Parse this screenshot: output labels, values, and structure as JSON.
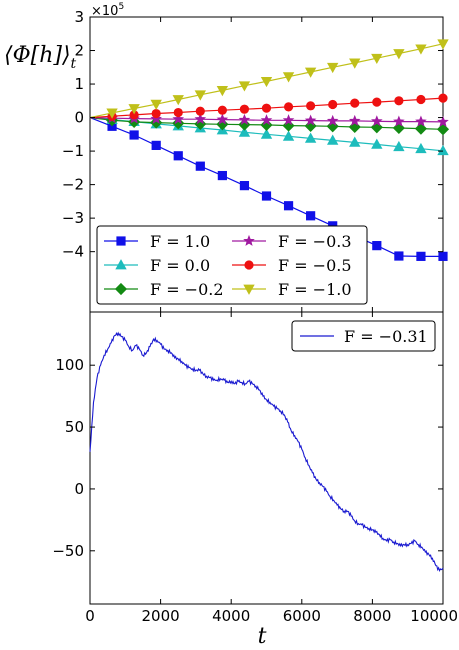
{
  "figure": {
    "x_axis_label": "t",
    "top_y_axis_label": "⟨Φ[h]⟩",
    "top_y_axis_label_subscript": "t",
    "top_y_multiplier_base": "×10",
    "top_y_multiplier_exp": "5"
  },
  "colors": {
    "F=1.0": "#1010e8",
    "F=0.0": "#1dbcbc",
    "F=-0.2": "#138a13",
    "F=-0.3": "#a01aa0",
    "F=-0.5": "#ee1111",
    "F=-1.0": "#c0c01a",
    "walk": "#1a1ad0"
  },
  "chart_data": [
    {
      "type": "line",
      "panel": "top",
      "x": [
        0,
        625,
        1250,
        1875,
        2500,
        3125,
        3750,
        4375,
        5000,
        5625,
        6250,
        6875,
        7500,
        8125,
        8750,
        9375,
        10000
      ],
      "xlim": [
        0,
        10000
      ],
      "ylim": [
        -5.8,
        3
      ],
      "y_unit_multiplier": "×10^5",
      "x_tick_labels": [
        "0",
        "2000",
        "4000",
        "6000",
        "8000",
        "10000"
      ],
      "x_tick_values": [
        0,
        2000,
        4000,
        6000,
        8000,
        10000
      ],
      "y_tick_labels": [
        "−4",
        "−3",
        "−2",
        "−1",
        "0",
        "1",
        "2",
        "3"
      ],
      "y_tick_values": [
        -4,
        -3,
        -2,
        -1,
        0,
        1,
        2,
        3
      ],
      "legend_position": "lower-left",
      "series": [
        {
          "name": "F = 1.0",
          "marker": "square",
          "color_key": "F=1.0",
          "values": [
            0,
            -0.26,
            -0.52,
            -0.83,
            -1.14,
            -1.45,
            -1.73,
            -2.03,
            -2.34,
            -2.63,
            -2.93,
            -3.23,
            -3.53,
            -3.82,
            -4.13,
            -4.14,
            -4.14
          ]
        },
        {
          "name": "F = 0.0",
          "marker": "triangle-up",
          "color_key": "F=0.0",
          "values": [
            0,
            -0.06,
            -0.12,
            -0.19,
            -0.25,
            -0.31,
            -0.37,
            -0.44,
            -0.5,
            -0.56,
            -0.62,
            -0.68,
            -0.74,
            -0.8,
            -0.87,
            -0.93,
            -0.99
          ]
        },
        {
          "name": "F = −0.2",
          "marker": "diamond",
          "color_key": "F=-0.2",
          "values": [
            0,
            -0.08,
            -0.13,
            -0.15,
            -0.17,
            -0.19,
            -0.2,
            -0.21,
            -0.22,
            -0.24,
            -0.25,
            -0.26,
            -0.28,
            -0.29,
            -0.31,
            -0.33,
            -0.35
          ]
        },
        {
          "name": "F = −0.3",
          "marker": "star",
          "color_key": "F=-0.3",
          "values": [
            0,
            -0.02,
            -0.03,
            -0.04,
            -0.05,
            -0.05,
            -0.06,
            -0.07,
            -0.08,
            -0.08,
            -0.09,
            -0.1,
            -0.1,
            -0.11,
            -0.12,
            -0.12,
            -0.13
          ]
        },
        {
          "name": "F = −0.5",
          "marker": "circle",
          "color_key": "F=-0.5",
          "values": [
            0,
            0.04,
            0.08,
            0.12,
            0.15,
            0.19,
            0.22,
            0.25,
            0.28,
            0.32,
            0.35,
            0.39,
            0.43,
            0.46,
            0.5,
            0.54,
            0.58
          ]
        },
        {
          "name": "F = −1.0",
          "marker": "triangle-down",
          "color_key": "F=-1.0",
          "values": [
            0,
            0.14,
            0.27,
            0.4,
            0.54,
            0.68,
            0.81,
            0.95,
            1.08,
            1.22,
            1.36,
            1.5,
            1.63,
            1.77,
            1.91,
            2.05,
            2.2
          ]
        }
      ]
    },
    {
      "type": "line",
      "panel": "bottom",
      "xlim": [
        0,
        10000
      ],
      "ylim": [
        -93,
        143
      ],
      "x_tick_labels": [
        "0",
        "2000",
        "4000",
        "6000",
        "8000",
        "10000"
      ],
      "x_tick_values": [
        0,
        2000,
        4000,
        6000,
        8000,
        10000
      ],
      "y_tick_labels": [
        "−50",
        "0",
        "50",
        "100"
      ],
      "y_tick_values": [
        -50,
        0,
        50,
        100
      ],
      "legend_position": "top-right",
      "series": [
        {
          "name": "F = −0.31",
          "color_key": "walk",
          "x": [
            0,
            100,
            200,
            300,
            400,
            500,
            600,
            700,
            800,
            900,
            1000,
            1100,
            1200,
            1300,
            1400,
            1500,
            1600,
            1700,
            1800,
            1900,
            2000,
            2100,
            2200,
            2300,
            2400,
            2500,
            2600,
            2700,
            2800,
            2900,
            3000,
            3100,
            3200,
            3300,
            3400,
            3500,
            3600,
            3700,
            3800,
            3900,
            4000,
            4100,
            4200,
            4300,
            4400,
            4500,
            4600,
            4700,
            4800,
            4900,
            5000,
            5100,
            5200,
            5300,
            5400,
            5500,
            5600,
            5700,
            5800,
            5900,
            6000,
            6100,
            6200,
            6300,
            6400,
            6500,
            6600,
            6700,
            6800,
            6900,
            7000,
            7100,
            7200,
            7300,
            7400,
            7500,
            7600,
            7700,
            7800,
            7900,
            8000,
            8100,
            8200,
            8300,
            8400,
            8500,
            8600,
            8700,
            8800,
            8900,
            9000,
            9100,
            9200,
            9300,
            9400,
            9500,
            9600,
            9700,
            9800,
            9900,
            10000
          ],
          "values": [
            30,
            70,
            90,
            100,
            108,
            113,
            118,
            124,
            126,
            123,
            120,
            115,
            112,
            116,
            113,
            108,
            110,
            115,
            121,
            120,
            117,
            113,
            112,
            110,
            106,
            105,
            103,
            100,
            98,
            97,
            96,
            96,
            93,
            91,
            90,
            88,
            88,
            89,
            88,
            86,
            87,
            85,
            87,
            86,
            85,
            87,
            85,
            83,
            80,
            75,
            72,
            70,
            67,
            65,
            63,
            60,
            54,
            47,
            43,
            38,
            32,
            25,
            19,
            13,
            8,
            5,
            2,
            -2,
            -6,
            -9,
            -13,
            -16,
            -18,
            -18,
            -22,
            -26,
            -28,
            -29,
            -31,
            -32,
            -33,
            -35,
            -37,
            -40,
            -42,
            -41,
            -43,
            -44,
            -46,
            -45,
            -45,
            -44,
            -42,
            -45,
            -47,
            -51,
            -53,
            -56,
            -62,
            -66,
            -64
          ]
        }
      ]
    }
  ]
}
